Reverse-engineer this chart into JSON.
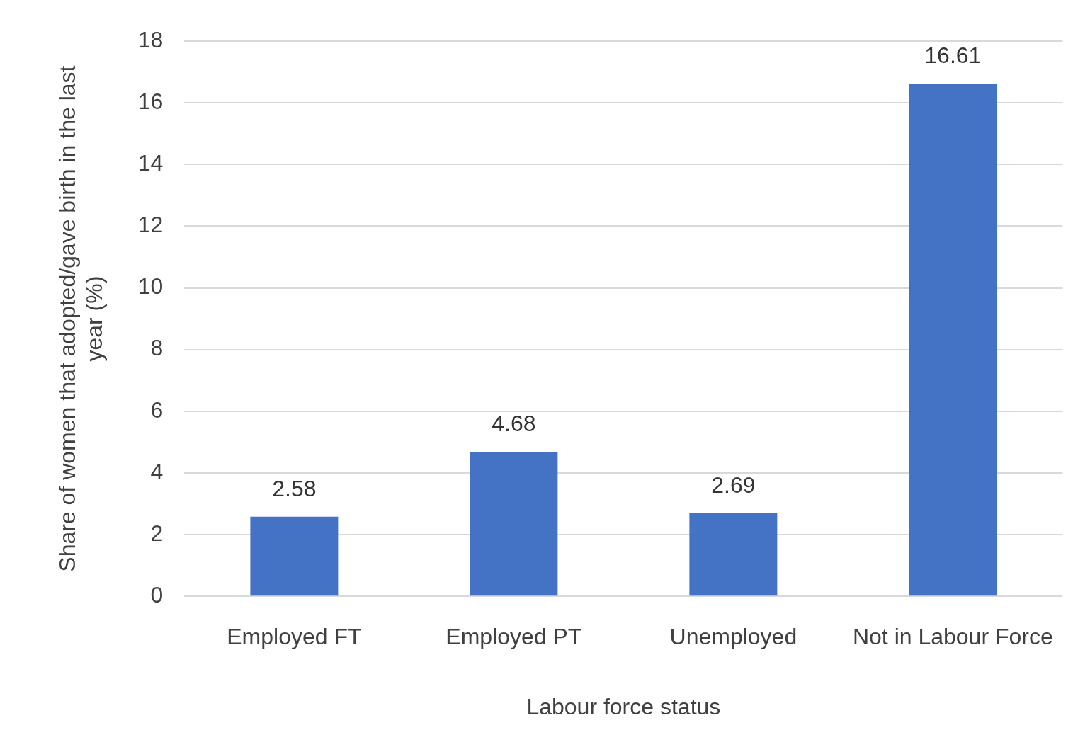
{
  "chart_data": {
    "type": "bar",
    "xlabel": "Labour force status",
    "ylabel": "Share of women that adopted/gave birth in the last year (%)",
    "categories": [
      "Employed FT",
      "Employed PT",
      "Unemployed",
      "Not in Labour Force"
    ],
    "values": [
      2.58,
      4.68,
      2.69,
      16.61
    ],
    "color": "#4472c4",
    "ylim": [
      0,
      18
    ],
    "yticks": [
      0,
      2,
      4,
      6,
      8,
      10,
      12,
      14,
      16,
      18
    ],
    "grid": "y",
    "data_labels": true,
    "legend": false
  }
}
